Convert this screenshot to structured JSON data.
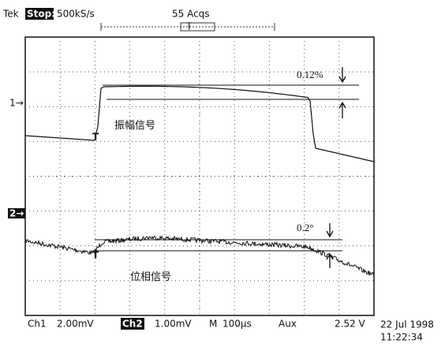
{
  "header": {
    "brand": "Tek",
    "state": "Stop:",
    "sample_rate": "500kS/s",
    "acquisitions": "55 Acqs"
  },
  "markers": {
    "trigger": "T",
    "ch1": "1→",
    "ch2": "2→"
  },
  "annotations": {
    "amplitude_delta": "0.12%",
    "phase_delta": "0.2°",
    "amplitude_label": "振幅信号",
    "phase_label": "位相信号"
  },
  "footer": {
    "ch1": "Ch1",
    "ch1_scale": "2.00mV",
    "ch2": "Ch2",
    "ch2_scale": "1.00mV",
    "timebase_label": "M",
    "timebase": "100µs",
    "trigger_source": "Aux",
    "trigger_level": "2.52 V",
    "date": "22 Jul 1998",
    "time": "11:22:34"
  }
}
